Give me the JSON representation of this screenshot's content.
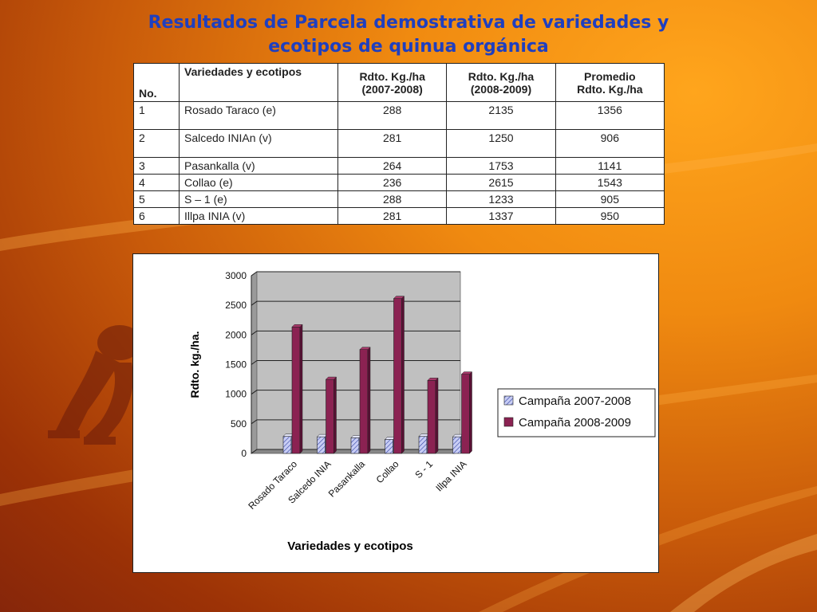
{
  "slide": {
    "title_line1": "Resultados de Parcela demostrativa de variedades y",
    "title_line2": "ecotipos de quinua orgánica"
  },
  "table": {
    "headers": {
      "no": "No.",
      "variety": "Variedades y ecotipos",
      "col1_line1": "Rdto. Kg./ha",
      "col1_line2": "(2007-2008)",
      "col2_line1": "Rdto. Kg./ha",
      "col2_line2": "(2008-2009)",
      "col3_line1": "Promedio",
      "col3_line2": "Rdto. Kg./ha"
    },
    "rows": [
      {
        "no": "1",
        "variety": "Rosado Taraco (e)",
        "y1": "288",
        "y2": "2135",
        "avg": "1356"
      },
      {
        "no": "2",
        "variety": "Salcedo INIAn (v)",
        "y1": "281",
        "y2": "1250",
        "avg": "906"
      },
      {
        "no": "3",
        "variety": "Pasankalla (v)",
        "y1": "264",
        "y2": "1753",
        "avg": "1141"
      },
      {
        "no": "4",
        "variety": "Collao (e)",
        "y1": "236",
        "y2": "2615",
        "avg": "1543"
      },
      {
        "no": "5",
        "variety": "S – 1 (e)",
        "y1": "288",
        "y2": "1233",
        "avg": "905"
      },
      {
        "no": "6",
        "variety": "Illpa INIA (v)",
        "y1": "281",
        "y2": "1337",
        "avg": "950"
      }
    ]
  },
  "chart_data": {
    "type": "bar",
    "categories": [
      "Rosado Taraco",
      "Salcedo INIA",
      "Pasankalla",
      "Collao",
      "S - 1",
      "Illpa INIA"
    ],
    "series": [
      {
        "name": "Campaña 2007-2008",
        "values": [
          288,
          281,
          264,
          236,
          288,
          281
        ],
        "color": "#c8cdf5",
        "pattern": "diagonal-hatch"
      },
      {
        "name": "Campaña 2008-2009",
        "values": [
          2135,
          1250,
          1753,
          2615,
          1233,
          1337
        ],
        "color": "#8b2252"
      }
    ],
    "xlabel": "Variedades y ecotipos",
    "ylabel": "Rdto. kg./ha.",
    "ylim": [
      0,
      3000
    ],
    "yticks": [
      0,
      500,
      1000,
      1500,
      2000,
      2500,
      3000
    ],
    "grid": true,
    "legend": "right",
    "plot_background": "#c0c0c0"
  }
}
